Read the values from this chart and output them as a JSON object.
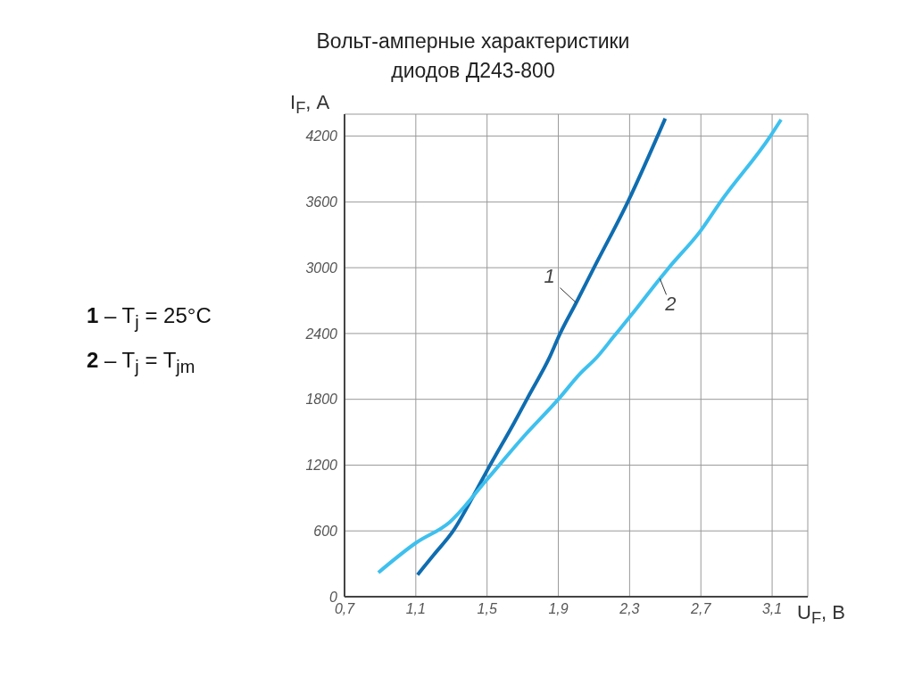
{
  "chart_data": {
    "type": "line",
    "title": "Вольт-амперные характеристики\nдиодов Д243-800",
    "xlabel": "U$_{F}$, В",
    "ylabel": "I$_{F}$, А",
    "annotations": [
      "1 – T$_{j}$ = 25°C",
      "2 – T$_{j}$ = T$_{jm}$"
    ],
    "xlim": [
      0.7,
      3.3
    ],
    "xticks": [
      {
        "value": 0.7,
        "label": "0,7"
      },
      {
        "value": 1.1,
        "label": "1,1"
      },
      {
        "value": 1.5,
        "label": "1,5"
      },
      {
        "value": 1.9,
        "label": "1,9"
      },
      {
        "value": 2.3,
        "label": "2,3"
      },
      {
        "value": 2.7,
        "label": "2,7"
      },
      {
        "value": 3.1,
        "label": "3,1"
      }
    ],
    "ylim": [
      0,
      4400
    ],
    "yticks": [
      0,
      600,
      1200,
      1800,
      2400,
      3000,
      3600,
      4200
    ],
    "grid": true,
    "marker": "none",
    "line_style": "solid",
    "series": [
      {
        "name": "1",
        "color": "#0f6db0",
        "x": [
          1.11,
          1.2,
          1.31,
          1.44,
          1.5,
          1.65,
          1.74,
          1.85,
          1.91,
          2.0,
          2.1,
          2.29,
          2.5
        ],
        "values": [
          200,
          380,
          600,
          970,
          1150,
          1580,
          1850,
          2180,
          2400,
          2680,
          3000,
          3600,
          4360
        ]
      },
      {
        "name": "2",
        "color": "#3ec0ee",
        "x": [
          0.89,
          1.1,
          1.29,
          1.5,
          1.7,
          1.9,
          2.02,
          2.12,
          2.21,
          2.31,
          2.47,
          2.52,
          2.7,
          2.81,
          3.09,
          3.15
        ],
        "values": [
          220,
          490,
          680,
          1070,
          1450,
          1800,
          2030,
          2190,
          2370,
          2570,
          2900,
          3000,
          3340,
          3600,
          4200,
          4350
        ]
      }
    ]
  }
}
